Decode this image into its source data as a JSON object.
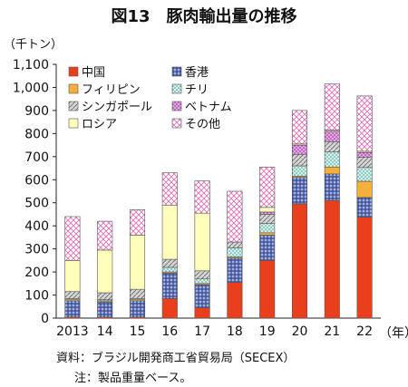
{
  "title": "図13　豚肉輸出量の推移",
  "unit": "（千トン）",
  "x_unit": "（年）",
  "source": "資料：ブラジル開発商工省貿易局（SECEX）",
  "note": "注：製品重量ベース。",
  "chart_data": {
    "type": "bar",
    "stacked": true,
    "categories": [
      "2013",
      "14",
      "15",
      "16",
      "17",
      "18",
      "19",
      "20",
      "21",
      "22"
    ],
    "ylim": [
      0,
      1100
    ],
    "yticks": [
      0,
      100,
      200,
      300,
      400,
      500,
      600,
      700,
      800,
      900,
      1000,
      1100
    ],
    "ytick_labels": [
      "0",
      "100",
      "200",
      "300",
      "400",
      "500",
      "600",
      "700",
      "800",
      "900",
      "1,000",
      "1,100"
    ],
    "legend_position": "top-left inside plot",
    "grid": false,
    "series": [
      {
        "name": "中国",
        "color": "#e8401c",
        "pattern": "solid",
        "values": [
          5,
          5,
          5,
          85,
          45,
          155,
          250,
          495,
          510,
          438
        ]
      },
      {
        "name": "香港",
        "color": "#5b6fb5",
        "pattern": "dots",
        "values": [
          70,
          65,
          70,
          110,
          100,
          105,
          110,
          115,
          115,
          85
        ]
      },
      {
        "name": "フィリピン",
        "color": "#f4b03a",
        "pattern": "solid",
        "values": [
          5,
          5,
          5,
          5,
          5,
          5,
          10,
          5,
          30,
          70
        ]
      },
      {
        "name": "チリ",
        "color": "#9ad0c8",
        "pattern": "dots",
        "values": [
          5,
          5,
          5,
          20,
          20,
          40,
          40,
          45,
          65,
          60
        ]
      },
      {
        "name": "シンガポール",
        "color": "#b3b3b3",
        "pattern": "hatch",
        "values": [
          30,
          30,
          40,
          35,
          35,
          25,
          40,
          50,
          45,
          45
        ]
      },
      {
        "name": "ベトナム",
        "color": "#cc66cc",
        "pattern": "dots",
        "values": [
          0,
          0,
          0,
          0,
          0,
          0,
          10,
          40,
          45,
          20
        ]
      },
      {
        "name": "ロシア",
        "color": "#ffffbb",
        "pattern": "solid",
        "values": [
          135,
          185,
          235,
          235,
          250,
          0,
          20,
          5,
          5,
          5
        ]
      },
      {
        "name": "その他",
        "color": "#e06fb8",
        "pattern": "crosshatch",
        "values": [
          190,
          125,
          110,
          140,
          140,
          220,
          175,
          145,
          200,
          240
        ]
      }
    ]
  }
}
